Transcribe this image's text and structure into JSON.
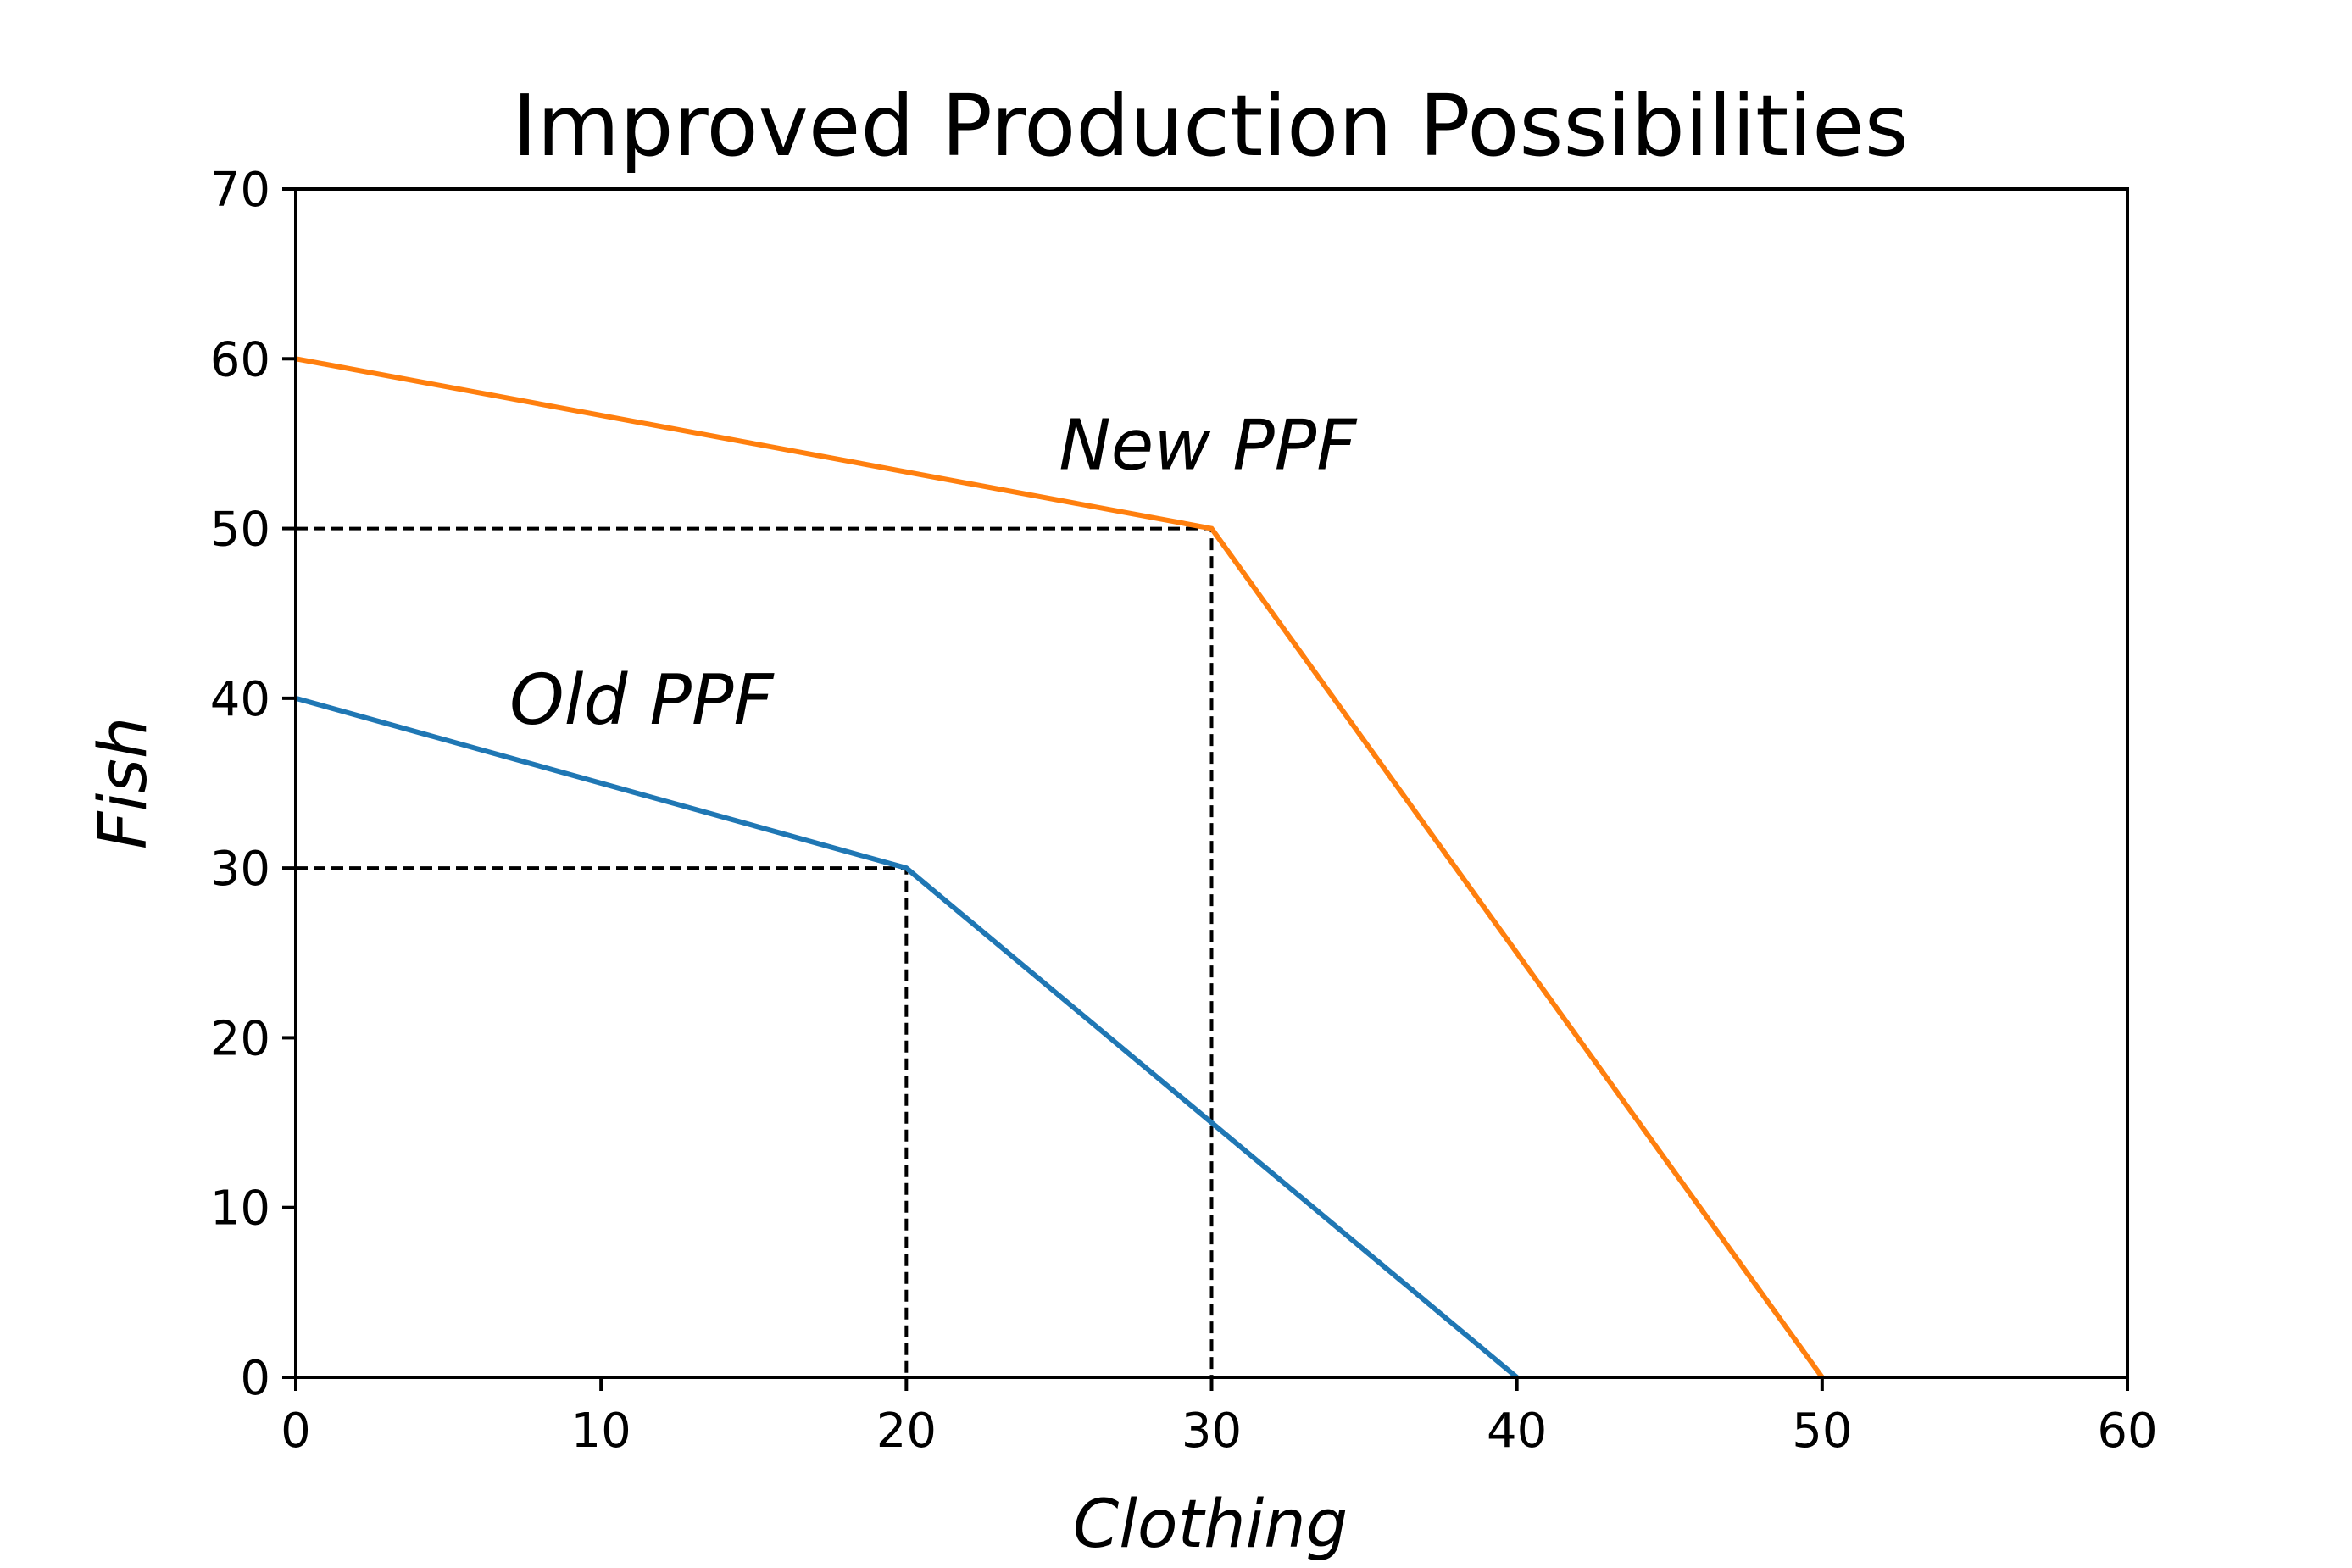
{
  "chart_data": {
    "type": "line",
    "title": "Improved Production Possibilities",
    "xlabel": "Clothing",
    "ylabel": "Fish",
    "xlim": [
      0,
      60
    ],
    "ylim": [
      0,
      70
    ],
    "xticks": [
      0,
      10,
      20,
      30,
      40,
      50,
      60
    ],
    "yticks": [
      0,
      10,
      20,
      30,
      40,
      50,
      60,
      70
    ],
    "grid": false,
    "series": [
      {
        "color": "#1f77b4",
        "points": [
          [
            0,
            40
          ],
          [
            20,
            30
          ],
          [
            40,
            0
          ]
        ]
      },
      {
        "color": "#ff7f0e",
        "points": [
          [
            0,
            60
          ],
          [
            30,
            50
          ],
          [
            50,
            0
          ]
        ]
      }
    ],
    "guides": [
      {
        "x": 20,
        "y": 30
      },
      {
        "x": 30,
        "y": 50
      }
    ],
    "annotations": [
      {
        "text": "Old PPF",
        "x": 7,
        "y": 38.5
      },
      {
        "text": "New PPF",
        "x": 25,
        "y": 53.5
      }
    ]
  }
}
